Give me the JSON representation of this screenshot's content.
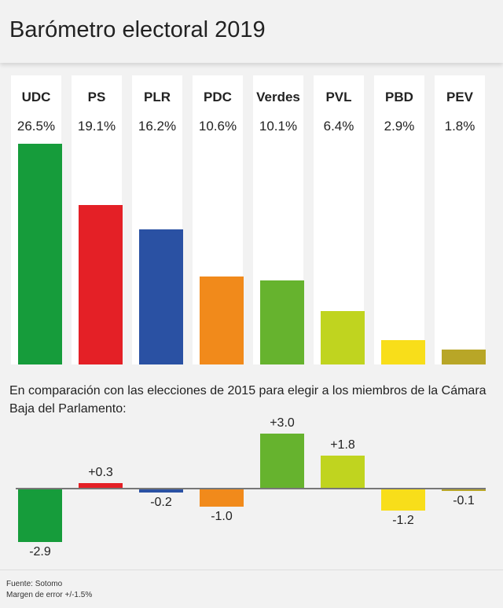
{
  "title": "Barómetro electoral 2019",
  "subtitle": "En comparación con las elecciones de 2015 para elegir a los miembros de la Cámara Baja del Parlamento:",
  "source": "Fuente: Sotomo",
  "margin_note": "Margen de error +/-1.5%",
  "colors": {
    "UDC": "#169c3b",
    "PS": "#e42026",
    "PLR": "#2a51a3",
    "PDC": "#f18a1b",
    "Verdes": "#66b32e",
    "PVL": "#c0d41f",
    "PBD": "#f8de1a",
    "PEV": "#b8a627"
  },
  "chart_data": [
    {
      "type": "bar",
      "categories": [
        "UDC",
        "PS",
        "PLR",
        "PDC",
        "Verdes",
        "PVL",
        "PBD",
        "PEV"
      ],
      "values": [
        26.5,
        19.1,
        16.2,
        10.6,
        10.1,
        6.4,
        2.9,
        1.8
      ],
      "labels": [
        "26.5%",
        "19.1%",
        "16.2%",
        "10.6%",
        "10.1%",
        "6.4%",
        "2.9%",
        "1.8%"
      ],
      "title": "Barómetro electoral 2019",
      "ylim": [
        0,
        26.5
      ]
    },
    {
      "type": "bar",
      "categories": [
        "UDC",
        "PS",
        "PLR",
        "PDC",
        "Verdes",
        "PVL",
        "PBD",
        "PEV"
      ],
      "values": [
        -2.9,
        0.3,
        -0.2,
        -1.0,
        3.0,
        1.8,
        -1.2,
        -0.1
      ],
      "labels": [
        "-2.9",
        "+0.3",
        "-0.2",
        "-1.0",
        "+3.0",
        "+1.8",
        "-1.2",
        "-0.1"
      ],
      "title": "En comparación con las elecciones de 2015 para elegir a los miembros de la Cámara Baja del Parlamento:"
    }
  ]
}
